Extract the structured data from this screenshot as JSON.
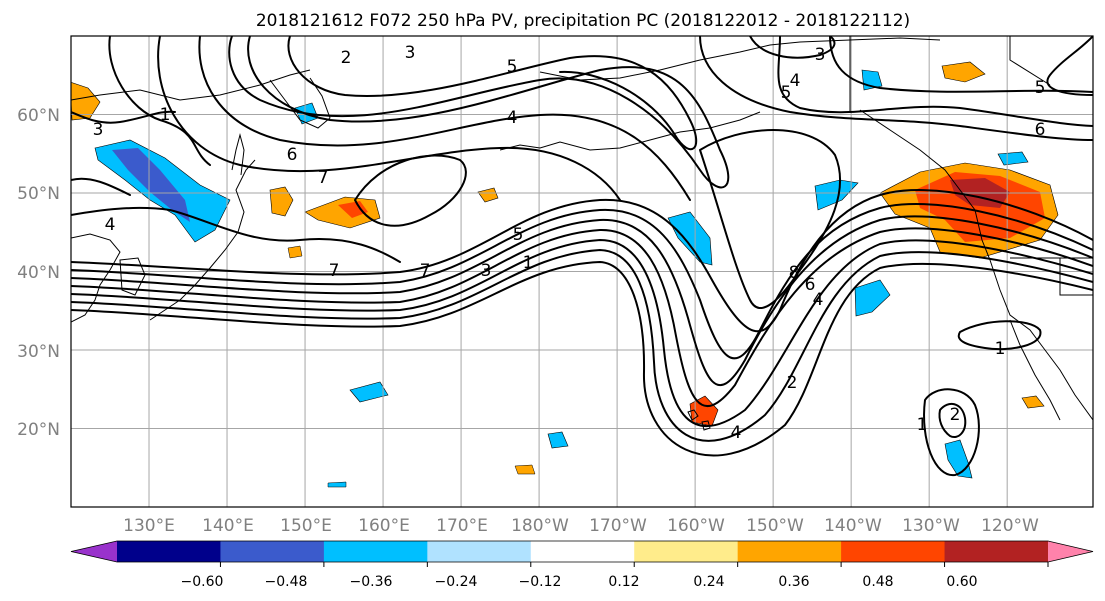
{
  "title": "2018121612 F072 250 hPa PV, precipitation PC (2018122012 - 2018122112)",
  "map": {
    "projection": "PlateCarree",
    "lat_labels": [
      "60°N",
      "50°N",
      "40°N",
      "30°N",
      "20°N"
    ],
    "lat_values": [
      60,
      50,
      40,
      30,
      20
    ],
    "lon_labels": [
      "130°E",
      "140°E",
      "150°E",
      "160°E",
      "170°E",
      "180°W",
      "170°W",
      "160°W",
      "150°W",
      "140°W",
      "130°W",
      "120°W"
    ],
    "lon_values": [
      130,
      140,
      150,
      160,
      170,
      180,
      190,
      200,
      210,
      220,
      230,
      240
    ],
    "extent": {
      "lon_min": 120,
      "lon_max": 251,
      "lat_min": 10,
      "lat_max": 70
    },
    "contour_labels": [
      "2",
      "3",
      "3",
      "5",
      "4",
      "5",
      "3",
      "5",
      "4",
      "6",
      "7",
      "6",
      "4",
      "7",
      "7",
      "3",
      "1",
      "5",
      "8",
      "6",
      "4",
      "2",
      "4",
      "1",
      "1",
      "2",
      "1"
    ],
    "contour_color": "#000000",
    "contour_field": "250 hPa PV",
    "shading_field": "precipitation PC"
  },
  "colorbar": {
    "tick_labels": [
      "−0.60",
      "−0.48",
      "−0.36",
      "−0.24",
      "−0.12",
      "0.12",
      "0.24",
      "0.36",
      "0.48",
      "0.60"
    ],
    "bounds": [
      -0.6,
      -0.48,
      -0.36,
      -0.24,
      -0.12,
      0.12,
      0.24,
      0.36,
      0.48,
      0.6
    ],
    "colors": [
      "#9932cc",
      "#00008b",
      "#3b5bcc",
      "#00bfff",
      "#b0e2ff",
      "#ffffff",
      "#ffec8b",
      "#ffa500",
      "#ff4500",
      "#b22222",
      "#ff82ab"
    ],
    "extend": "both"
  }
}
